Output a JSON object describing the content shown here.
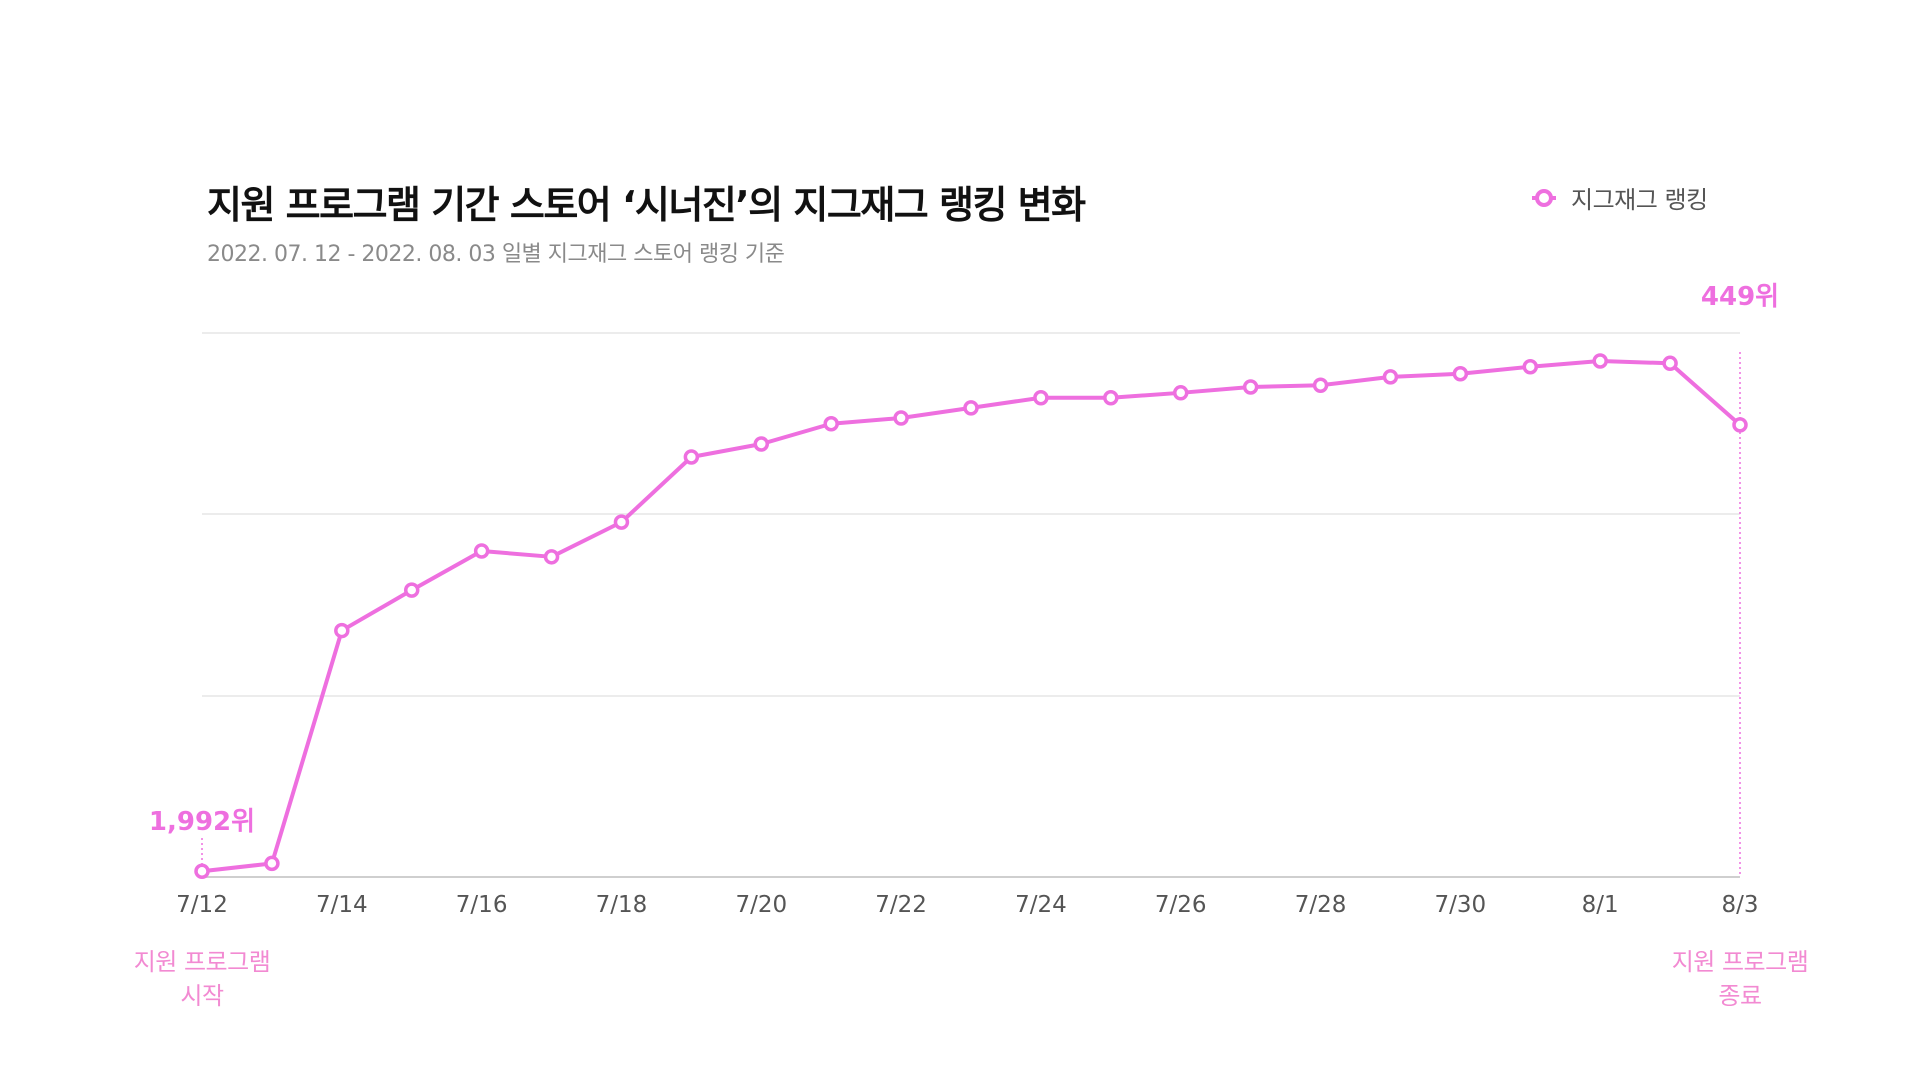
{
  "chart_data": {
    "type": "line",
    "title": "지원 프로그램 기간 스토어 ‘시너진’의 지그재그 랭킹 변화",
    "subtitle": "2022. 07. 12 - 2022. 08. 03  일별 지그재그 스토어 랭킹 기준",
    "legend": {
      "label": "지그재그 랭킹",
      "placement": "top-right"
    },
    "x": [
      "7/12",
      "7/13",
      "7/14",
      "7/15",
      "7/16",
      "7/17",
      "7/18",
      "7/19",
      "7/20",
      "7/21",
      "7/22",
      "7/23",
      "7/24",
      "7/25",
      "7/26",
      "7/27",
      "7/28",
      "7/29",
      "7/30",
      "7/31",
      "8/1",
      "8/2",
      "8/3"
    ],
    "x_tick_labels": [
      "7/12",
      "7/14",
      "7/16",
      "7/18",
      "7/20",
      "7/22",
      "7/24",
      "7/26",
      "7/28",
      "7/30",
      "8/1",
      "8/3"
    ],
    "series": [
      {
        "name": "지그재그 랭킹",
        "values": [
          1992,
          1965,
          1160,
          1020,
          885,
          905,
          785,
          560,
          515,
          445,
          425,
          390,
          355,
          355,
          338,
          318,
          312,
          283,
          272,
          248,
          228,
          236,
          449
        ]
      }
    ],
    "y_reversed": true,
    "grid": true,
    "color": "#ee6fdf",
    "annotations": {
      "start_value": "1,992위",
      "end_value": "449위",
      "start_event": [
        "지원 프로그램",
        "시작"
      ],
      "end_event": [
        "지원 프로그램",
        "종료"
      ]
    }
  }
}
